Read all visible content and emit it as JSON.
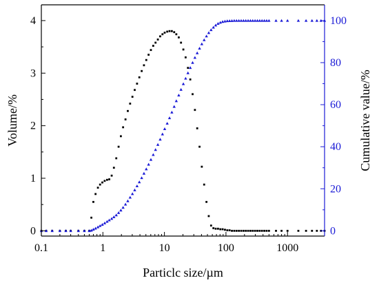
{
  "chart_data": {
    "type": "scatter",
    "xlabel": "Particlc size/µm",
    "ylabel_left": "Volume/%",
    "ylabel_right": "Cumulative value/%",
    "x_scale": "log",
    "xlim": [
      0.1,
      4000
    ],
    "ylim_left": [
      -0.1,
      4.3
    ],
    "ylim_right": [
      -2.5,
      107.5
    ],
    "x_ticks": [
      0.1,
      1,
      10,
      100,
      1000
    ],
    "x_tick_labels": [
      "0.1",
      "1",
      "10",
      "100",
      "1000"
    ],
    "y_left_ticks": [
      0,
      1,
      2,
      3,
      4
    ],
    "y_left_tick_labels": [
      "0",
      "1",
      "2",
      "3",
      "4"
    ],
    "y_right_ticks": [
      0,
      20,
      40,
      60,
      80,
      100
    ],
    "y_right_tick_labels": [
      "0",
      "20",
      "40",
      "60",
      "80",
      "100"
    ],
    "grid": false,
    "legend": "none",
    "colors": {
      "volume": "#000000",
      "cumulative": "#1a1ad6",
      "axis": "#000000",
      "right_axis": "#1a1ad6"
    },
    "series": [
      {
        "axis": "left",
        "marker": "square",
        "x": [
          0.1,
          0.12,
          0.15,
          0.2,
          0.25,
          0.3,
          0.4,
          0.5,
          0.6,
          0.65,
          0.7,
          0.76,
          0.83,
          0.9,
          0.98,
          1.07,
          1.17,
          1.27,
          1.39,
          1.51,
          1.65,
          1.8,
          1.96,
          2.13,
          2.33,
          2.54,
          2.77,
          3.02,
          3.29,
          3.59,
          3.91,
          4.27,
          4.65,
          5.07,
          5.53,
          6.03,
          6.58,
          7.17,
          7.82,
          8.53,
          9.3,
          10.1,
          11.1,
          12.1,
          13.2,
          14.4,
          15.6,
          17.1,
          18.6,
          20.3,
          22.1,
          24.1,
          26.3,
          28.7,
          31.3,
          34.1,
          37.2,
          40.5,
          44.2,
          48.2,
          52.5,
          57.3,
          62.5,
          68.1,
          74.3,
          81.0,
          88.3,
          96.3,
          105,
          114.5,
          124.9,
          136.2,
          148.5,
          162,
          176.6,
          192.6,
          210,
          229,
          249.7,
          272.3,
          297,
          323.8,
          353.1,
          385,
          420,
          458,
          500,
          650,
          800,
          1000,
          1500,
          2000,
          2500,
          3000,
          3500,
          4000
        ],
        "y": [
          0,
          0,
          0,
          0,
          0,
          0,
          0,
          0,
          0,
          0.25,
          0.55,
          0.7,
          0.82,
          0.88,
          0.92,
          0.95,
          0.97,
          0.98,
          1.05,
          1.2,
          1.38,
          1.6,
          1.8,
          1.97,
          2.12,
          2.28,
          2.42,
          2.55,
          2.68,
          2.8,
          2.92,
          3.04,
          3.15,
          3.25,
          3.35,
          3.44,
          3.52,
          3.58,
          3.64,
          3.7,
          3.74,
          3.77,
          3.79,
          3.8,
          3.8,
          3.78,
          3.74,
          3.68,
          3.58,
          3.45,
          3.3,
          3.1,
          2.88,
          2.6,
          2.3,
          1.95,
          1.6,
          1.22,
          0.88,
          0.55,
          0.28,
          0.1,
          0.05,
          0.04,
          0.04,
          0.03,
          0.03,
          0.02,
          0.01,
          0.01,
          0,
          0,
          0,
          0,
          0,
          0,
          0,
          0,
          0,
          0,
          0,
          0,
          0,
          0,
          0,
          0,
          0,
          0,
          0,
          0,
          0,
          0,
          0,
          0,
          0,
          0
        ]
      },
      {
        "axis": "right",
        "marker": "triangle",
        "x": [
          0.1,
          0.12,
          0.15,
          0.2,
          0.25,
          0.3,
          0.4,
          0.5,
          0.6,
          0.65,
          0.7,
          0.76,
          0.83,
          0.9,
          0.98,
          1.07,
          1.17,
          1.27,
          1.39,
          1.51,
          1.65,
          1.8,
          1.96,
          2.13,
          2.33,
          2.54,
          2.77,
          3.02,
          3.29,
          3.59,
          3.91,
          4.27,
          4.65,
          5.07,
          5.53,
          6.03,
          6.58,
          7.17,
          7.82,
          8.53,
          9.3,
          10.1,
          11.1,
          12.1,
          13.2,
          14.4,
          15.6,
          17.1,
          18.6,
          20.3,
          22.1,
          24.1,
          26.3,
          28.7,
          31.3,
          34.1,
          37.2,
          40.5,
          44.2,
          48.2,
          52.5,
          57.3,
          62.5,
          68.1,
          74.3,
          81.0,
          88.3,
          96.3,
          105,
          114.5,
          124.9,
          136.2,
          148.5,
          162,
          176.6,
          192.6,
          210,
          229,
          249.7,
          272.3,
          297,
          323.8,
          353.1,
          385,
          420,
          458,
          500,
          650,
          800,
          1000,
          1500,
          2000,
          2500,
          3000,
          3500,
          4000
        ],
        "y": [
          0,
          0,
          0,
          0,
          0,
          0,
          0,
          0,
          0,
          0.2,
          0.7,
          1.2,
          1.8,
          2.4,
          3.0,
          3.7,
          4.4,
          5.1,
          5.8,
          6.6,
          7.5,
          8.6,
          9.8,
          11.1,
          12.6,
          14.2,
          15.9,
          17.6,
          19.4,
          21.3,
          23.2,
          25.2,
          27.3,
          29.4,
          31.6,
          33.9,
          36.2,
          38.6,
          41.0,
          43.5,
          46.0,
          48.5,
          51.1,
          53.7,
          56.4,
          59.1,
          61.8,
          64.5,
          67.2,
          69.9,
          72.5,
          75.1,
          77.6,
          80.0,
          82.4,
          84.6,
          86.8,
          88.9,
          90.8,
          92.6,
          94.2,
          95.6,
          96.8,
          97.8,
          98.6,
          99.1,
          99.5,
          99.7,
          99.85,
          99.9,
          99.95,
          100,
          100,
          100,
          100,
          100,
          100,
          100,
          100,
          100,
          100,
          100,
          100,
          100,
          100,
          100,
          100,
          100,
          100,
          100,
          100,
          100,
          100,
          100,
          100,
          100
        ]
      }
    ]
  }
}
